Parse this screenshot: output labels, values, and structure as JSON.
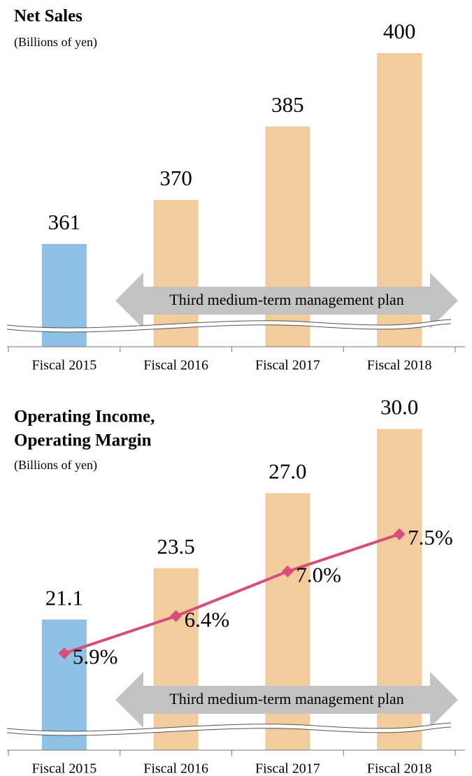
{
  "chart_data": [
    {
      "type": "bar",
      "title": "Net Sales",
      "subtitle": "(Billions of yen)",
      "categories": [
        "Fiscal 2015",
        "Fiscal 2016",
        "Fiscal 2017",
        "Fiscal 2018"
      ],
      "values": [
        361,
        370,
        385,
        400
      ],
      "colors": [
        "#8fc1e6",
        "#f2cc9c",
        "#f2cc9c",
        "#f2cc9c"
      ],
      "ylim": [
        340,
        405
      ],
      "annotation": "Third medium-term management plan"
    },
    {
      "type": "combo",
      "title": [
        "Operating Income,",
        "Operating Margin"
      ],
      "subtitle": "(Billions of yen)",
      "categories": [
        "Fiscal 2015",
        "Fiscal 2016",
        "Fiscal 2017",
        "Fiscal 2018"
      ],
      "series": [
        {
          "type": "bar",
          "values": [
            21.1,
            23.5,
            27.0,
            30.0
          ],
          "value_labels": [
            "21.1",
            "23.5",
            "27.0",
            "30.0"
          ],
          "colors": [
            "#8fc1e6",
            "#f2cc9c",
            "#f2cc9c",
            "#f2cc9c"
          ]
        },
        {
          "type": "line",
          "axis": "y2",
          "values": [
            5.9,
            6.4,
            7.0,
            7.5
          ],
          "value_labels": [
            "5.9%",
            "6.4%",
            "7.0%",
            "7.5%"
          ],
          "color": "#d64f7c"
        }
      ],
      "ylim": [
        15,
        31
      ],
      "y2lim": [
        4.6,
        9.2
      ],
      "annotation": "Third medium-term management plan"
    }
  ]
}
